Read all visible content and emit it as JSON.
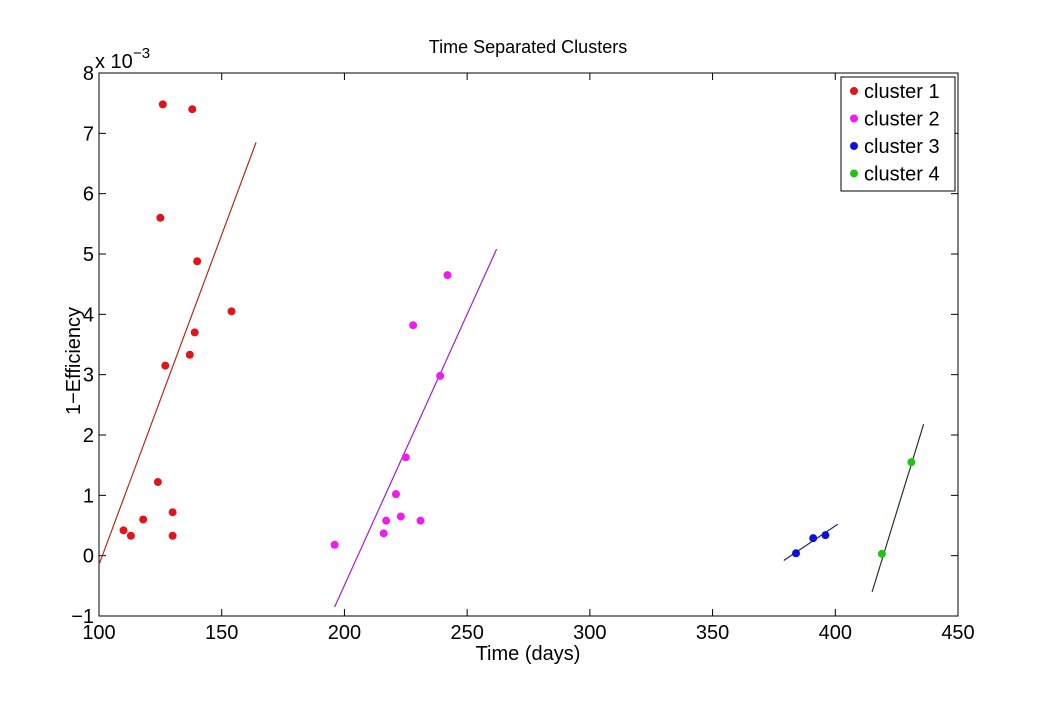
{
  "chart_data": {
    "type": "scatter",
    "title": "Time Separated Clusters",
    "xlabel": "Time (days)",
    "ylabel": "1−Efficiency",
    "y_exponent_label": "x 10",
    "y_exponent_power": "−3",
    "xlim": [
      100,
      450
    ],
    "ylim": [
      -1,
      8
    ],
    "x_ticks": [
      100,
      150,
      200,
      250,
      300,
      350,
      400,
      450
    ],
    "y_ticks": [
      -1,
      0,
      1,
      2,
      3,
      4,
      5,
      6,
      7,
      8
    ],
    "x_tick_labels": [
      "100",
      "150",
      "200",
      "250",
      "300",
      "350",
      "400",
      "450"
    ],
    "y_tick_labels": [
      "−1",
      "0",
      "1",
      "2",
      "3",
      "4",
      "5",
      "6",
      "7",
      "8"
    ],
    "grid": false,
    "legend_position": "top-right",
    "series": [
      {
        "name": "cluster 1",
        "color": "#e0151b",
        "line_color": "#b8291a",
        "points": [
          [
            110,
            0.42
          ],
          [
            113,
            0.33
          ],
          [
            118,
            0.6
          ],
          [
            124,
            1.22
          ],
          [
            125,
            5.6
          ],
          [
            126,
            7.48
          ],
          [
            127,
            3.15
          ],
          [
            130,
            0.72
          ],
          [
            130,
            0.33
          ],
          [
            137,
            3.33
          ],
          [
            138,
            7.4
          ],
          [
            139,
            3.7
          ],
          [
            140,
            4.88
          ],
          [
            154,
            4.05
          ]
        ],
        "fit_line": [
          [
            100,
            -0.15
          ],
          [
            164,
            6.85
          ]
        ]
      },
      {
        "name": "cluster 2",
        "color": "#ee1cee",
        "line_color": "#a020c8",
        "points": [
          [
            196,
            0.18
          ],
          [
            216,
            0.37
          ],
          [
            217,
            0.58
          ],
          [
            221,
            1.02
          ],
          [
            223,
            0.65
          ],
          [
            225,
            1.63
          ],
          [
            228,
            3.82
          ],
          [
            231,
            0.58
          ],
          [
            239,
            2.98
          ],
          [
            242,
            4.65
          ]
        ],
        "fit_line": [
          [
            196,
            -0.85
          ],
          [
            262,
            5.08
          ]
        ]
      },
      {
        "name": "cluster 3",
        "color": "#0a14d8",
        "line_color": "#1a2a70",
        "points": [
          [
            384,
            0.04
          ],
          [
            391,
            0.29
          ],
          [
            396,
            0.34
          ]
        ],
        "fit_line": [
          [
            379,
            -0.08
          ],
          [
            401,
            0.52
          ]
        ]
      },
      {
        "name": "cluster 4",
        "color": "#22c414",
        "line_color": "#1e3a1e",
        "points": [
          [
            419,
            0.03
          ],
          [
            431,
            1.55
          ]
        ],
        "fit_line": [
          [
            415,
            -0.6
          ],
          [
            436,
            2.18
          ]
        ]
      }
    ]
  }
}
